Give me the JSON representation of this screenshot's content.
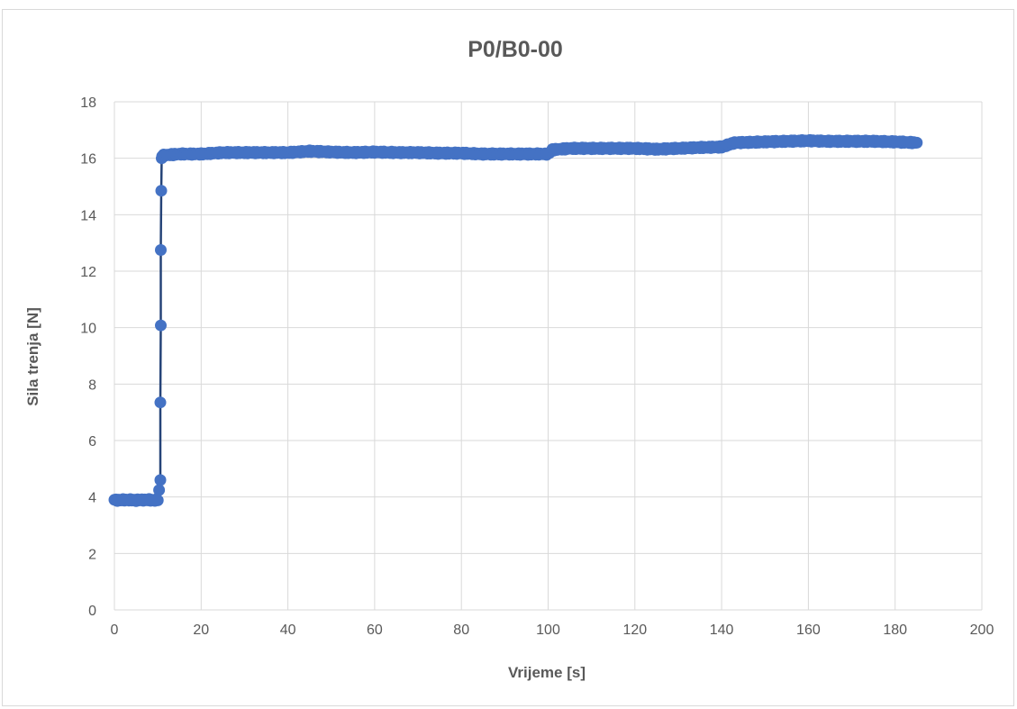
{
  "chart_data": {
    "type": "scatter",
    "title": "P0/B0-00",
    "xlabel": "Vrijeme [s]",
    "ylabel": "Sila trenja [N]",
    "xlim": [
      0,
      200
    ],
    "ylim": [
      0,
      18
    ],
    "xticks": [
      "0",
      "20",
      "40",
      "60",
      "80",
      "100",
      "120",
      "140",
      "160",
      "180",
      "200"
    ],
    "yticks": [
      "0",
      "2",
      "4",
      "6",
      "8",
      "10",
      "12",
      "14",
      "16",
      "18"
    ],
    "grid": true,
    "legend": "none",
    "series": [
      {
        "color": "#4472c4",
        "line_color": "#264478",
        "points": [
          [
            0,
            3.9
          ],
          [
            1,
            3.88
          ],
          [
            2,
            3.9
          ],
          [
            3,
            3.89
          ],
          [
            4,
            3.9
          ],
          [
            5,
            3.88
          ],
          [
            6,
            3.9
          ],
          [
            7,
            3.89
          ],
          [
            8,
            3.9
          ],
          [
            9,
            3.88
          ],
          [
            10,
            3.9
          ],
          [
            10.6,
            4.6
          ],
          [
            10.6,
            7.35
          ],
          [
            10.7,
            10.08
          ],
          [
            10.7,
            12.75
          ],
          [
            10.8,
            14.85
          ],
          [
            10.9,
            16.0
          ],
          [
            11,
            16.1
          ],
          [
            15,
            16.15
          ],
          [
            20,
            16.15
          ],
          [
            25,
            16.2
          ],
          [
            30,
            16.2
          ],
          [
            35,
            16.2
          ],
          [
            40,
            16.2
          ],
          [
            45,
            16.25
          ],
          [
            50,
            16.22
          ],
          [
            55,
            16.2
          ],
          [
            60,
            16.22
          ],
          [
            65,
            16.2
          ],
          [
            70,
            16.2
          ],
          [
            75,
            16.18
          ],
          [
            80,
            16.18
          ],
          [
            85,
            16.15
          ],
          [
            90,
            16.15
          ],
          [
            95,
            16.15
          ],
          [
            100,
            16.15
          ],
          [
            101,
            16.3
          ],
          [
            105,
            16.35
          ],
          [
            110,
            16.35
          ],
          [
            115,
            16.35
          ],
          [
            120,
            16.35
          ],
          [
            125,
            16.32
          ],
          [
            130,
            16.35
          ],
          [
            135,
            16.38
          ],
          [
            140,
            16.4
          ],
          [
            143,
            16.55
          ],
          [
            150,
            16.58
          ],
          [
            155,
            16.6
          ],
          [
            160,
            16.62
          ],
          [
            165,
            16.6
          ],
          [
            170,
            16.6
          ],
          [
            175,
            16.6
          ],
          [
            180,
            16.58
          ],
          [
            185,
            16.55
          ]
        ]
      }
    ]
  }
}
